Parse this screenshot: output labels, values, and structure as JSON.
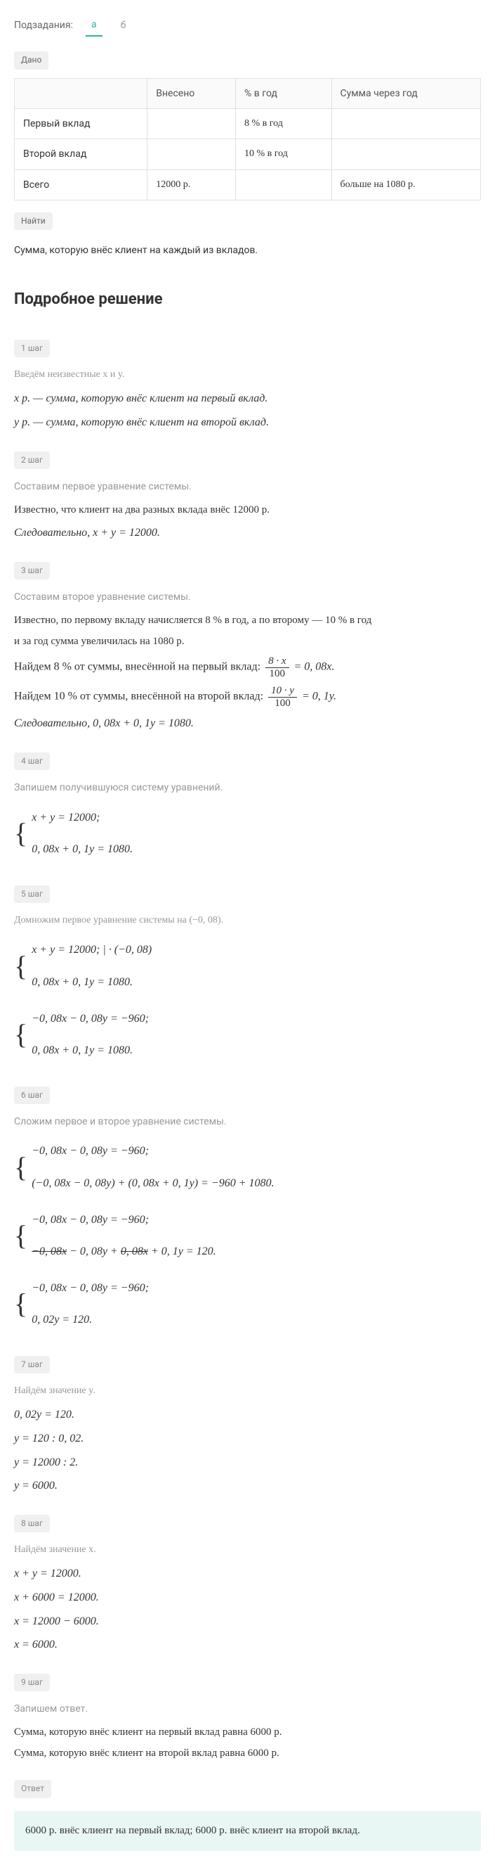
{
  "tabs": {
    "label": "Подзадания:",
    "a": "а",
    "b": "б"
  },
  "given_badge": "Дано",
  "table": {
    "h_deposit": "Внесено",
    "h_rate": "% в год",
    "h_sum": "Сумма через год",
    "r1_label": "Первый вклад",
    "r1_rate": "8 % в год",
    "r2_label": "Второй вклад",
    "r2_rate": "10 % в год",
    "r3_label": "Всего",
    "r3_deposit": "12000 р.",
    "r3_sum": "больше на 1080 р."
  },
  "find_badge": "Найти",
  "find_text": "Сумма, которую внёс клиент на каждый из вкладов.",
  "solution_title": "Подробное решение",
  "step1": {
    "badge": "1 шаг",
    "desc": "Введём неизвестные x и y.",
    "l1": "x р. — сумма, которую внёс клиент на первый вклад.",
    "l2": "y р. — сумма, которую внёс клиент на второй вклад."
  },
  "step2": {
    "badge": "2 шаг",
    "desc": "Составим первое уравнение системы.",
    "l1": "Известно, что клиент на два разных вклада внёс 12000 р.",
    "l2": "Следовательно, x + y = 12000."
  },
  "step3": {
    "badge": "3 шаг",
    "desc": "Составим второе уравнение системы.",
    "l1": "Известно, по первому вкладу начисляется 8 % в год, а по второму — 10 % в год",
    "l2": "и за год сумма увеличилась на 1080 р.",
    "l3a": "Найдем 8 % от суммы, внесённой на первый вклад: ",
    "f1_num": "8 · x",
    "f1_den": "100",
    "l3b": " = 0, 08x.",
    "l4a": "Найдем 10 % от суммы, внесённой на второй вклад: ",
    "f2_num": "10 · y",
    "f2_den": "100",
    "l4b": " = 0, 1y.",
    "l5": "Следовательно, 0, 08x + 0, 1y = 1080."
  },
  "step4": {
    "badge": "4 шаг",
    "desc": "Запишем получившуюся систему уравнений.",
    "s1": "x + y = 12000;",
    "s2": "0, 08x + 0, 1y = 1080."
  },
  "step5": {
    "badge": "5 шаг",
    "desc": "Домножим первое уравнение системы на (−0, 08).",
    "s1a": "x + y = 12000;  | · (−0, 08)",
    "s1b": "0, 08x + 0, 1y = 1080.",
    "s2a": "−0, 08x − 0, 08y = −960;",
    "s2b": "0, 08x + 0, 1y = 1080."
  },
  "step6": {
    "badge": "6 шаг",
    "desc": "Сложим первое и второе уравнение системы.",
    "s1a": "−0, 08x − 0, 08y = −960;",
    "s1b": "(−0, 08x − 0, 08y) + (0, 08x + 0, 1y) = −960 + 1080.",
    "s2a": "−0, 08x − 0, 08y = −960;",
    "s2b_strike1": "−0, 08x",
    "s2b_mid": " − 0, 08y + ",
    "s2b_strike2": "0, 08x",
    "s2b_end": " + 0, 1y = 120.",
    "s3a": "−0, 08x − 0, 08y = −960;",
    "s3b": "0, 02y = 120."
  },
  "step7": {
    "badge": "7 шаг",
    "desc": "Найдём значение y.",
    "l1": "0, 02y = 120.",
    "l2": "y = 120 : 0, 02.",
    "l3": "y = 12000 : 2.",
    "l4": "y = 6000."
  },
  "step8": {
    "badge": "8 шаг",
    "desc": "Найдём значение x.",
    "l1": "x + y = 12000.",
    "l2": "x + 6000 = 12000.",
    "l3": "x = 12000 − 6000.",
    "l4": "x = 6000."
  },
  "step9": {
    "badge": "9 шаг",
    "desc": "Запишем ответ.",
    "l1": "Сумма, которую внёс клиент на первый вклад равна 6000 р.",
    "l2": "Сумма, которую внёс клиент на второй вклад равна 6000 р."
  },
  "answer_badge": "Ответ",
  "answer_text": "6000 р. внёс клиент на первый вклад; 6000 р. внёс клиент на второй вклад."
}
